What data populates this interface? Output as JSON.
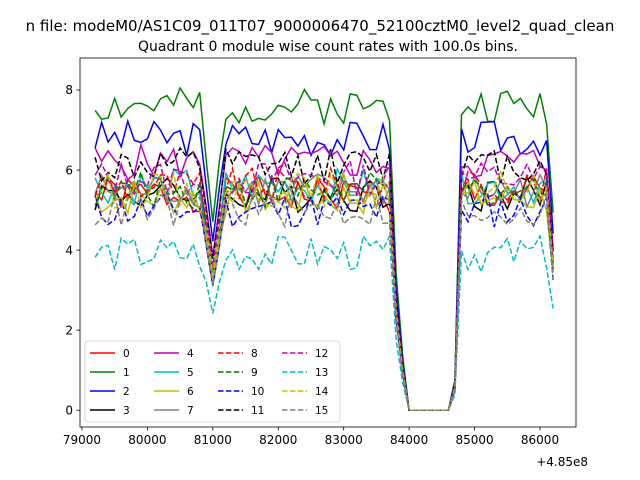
{
  "chart_data": {
    "type": "line",
    "suptitle": "n file: modeM0/AS1C09_011T07_9000006470_52100cztM0_level2_quad_clean",
    "title": "Quadrant 0 module wise count rates with 100.0s bins.",
    "xlabel": "",
    "ylabel": "",
    "x_offset_label": "+4.85e8",
    "xlim": [
      78970,
      86550
    ],
    "ylim": [
      -0.42,
      8.8
    ],
    "x_ticks": [
      79000,
      80000,
      81000,
      82000,
      83000,
      84000,
      85000,
      86000
    ],
    "y_ticks": [
      0,
      2,
      4,
      6,
      8
    ],
    "x_tick_labels": [
      "79000",
      "80000",
      "81000",
      "82000",
      "83000",
      "84000",
      "85000",
      "86000"
    ],
    "y_tick_labels": [
      "0",
      "2",
      "4",
      "6",
      "8"
    ],
    "legend": {
      "location": "lower left",
      "columns": 4
    },
    "series": [
      {
        "name": "0",
        "color": "#ff0000",
        "dash": "solid",
        "level": 5.4,
        "seed": 1
      },
      {
        "name": "1",
        "color": "#008000",
        "dash": "solid",
        "level": 7.6,
        "seed": 2
      },
      {
        "name": "2",
        "color": "#0000ff",
        "dash": "solid",
        "level": 6.8,
        "seed": 3
      },
      {
        "name": "3",
        "color": "#000000",
        "dash": "solid",
        "level": 5.4,
        "seed": 4
      },
      {
        "name": "4",
        "color": "#bf00bf",
        "dash": "solid",
        "level": 6.2,
        "seed": 5
      },
      {
        "name": "5",
        "color": "#00bfbf",
        "dash": "solid",
        "level": 5.6,
        "seed": 6
      },
      {
        "name": "6",
        "color": "#bfbf00",
        "dash": "solid",
        "level": 5.3,
        "seed": 7
      },
      {
        "name": "7",
        "color": "#808080",
        "dash": "solid",
        "level": 5.5,
        "seed": 8
      },
      {
        "name": "8",
        "color": "#ff0000",
        "dash": "dashed",
        "level": 5.6,
        "seed": 9
      },
      {
        "name": "9",
        "color": "#008000",
        "dash": "dashed",
        "level": 5.5,
        "seed": 10
      },
      {
        "name": "10",
        "color": "#0000ff",
        "dash": "dashed",
        "level": 5.0,
        "seed": 11
      },
      {
        "name": "11",
        "color": "#000000",
        "dash": "dashed",
        "level": 6.1,
        "seed": 12
      },
      {
        "name": "12",
        "color": "#bf00bf",
        "dash": "dashed",
        "level": 5.8,
        "seed": 13
      },
      {
        "name": "13",
        "color": "#00bfbf",
        "dash": "dashed",
        "level": 3.9,
        "seed": 14
      },
      {
        "name": "14",
        "color": "#bfbf00",
        "dash": "dashed",
        "level": 5.5,
        "seed": 15
      },
      {
        "name": "15",
        "color": "#808080",
        "dash": "dashed",
        "level": 5.0,
        "seed": 16
      }
    ]
  }
}
